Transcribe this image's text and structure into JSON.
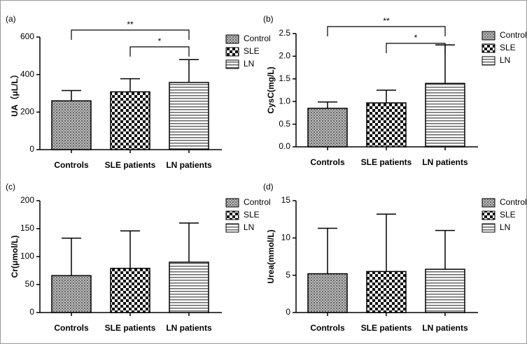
{
  "chart_data": [
    {
      "type": "bar",
      "panel_label": "(a)",
      "ylabel": "UA（μL/L）",
      "categories": [
        "Controls",
        "SLE patients",
        "LN patients"
      ],
      "values": [
        260,
        308,
        358
      ],
      "errors": [
        55,
        70,
        122
      ],
      "legend": [
        "Control",
        "SLE",
        "LN"
      ],
      "patterns": [
        "crosshatch",
        "checker",
        "hlines"
      ],
      "ylim": [
        0,
        600
      ],
      "yticks": [
        0,
        200,
        400,
        600
      ],
      "annotations": [
        {
          "text": "**",
          "from": 0,
          "to": 2
        },
        {
          "text": "*",
          "from": 1,
          "to": 2
        }
      ]
    },
    {
      "type": "bar",
      "panel_label": "(b)",
      "ylabel": "CysC(mg/L)",
      "categories": [
        "Controls",
        "SLE patients",
        "LN patients"
      ],
      "values": [
        0.85,
        0.97,
        1.4
      ],
      "errors": [
        0.14,
        0.28,
        0.85
      ],
      "legend": [
        "Control",
        "SLE",
        "LN"
      ],
      "patterns": [
        "crosshatch",
        "checker",
        "hlines"
      ],
      "ylim": [
        0,
        2.5
      ],
      "yticks": [
        {
          "value": 0,
          "label": "0.0"
        },
        0.5,
        {
          "value": 1,
          "label": "1.0"
        },
        1.5,
        {
          "value": 2,
          "label": "2.0"
        },
        2.5
      ],
      "annotations": [
        {
          "text": "**",
          "from": 0,
          "to": 2
        },
        {
          "text": "*",
          "from": 1,
          "to": 2
        }
      ]
    },
    {
      "type": "bar",
      "panel_label": "(c)",
      "ylabel": "Cr(μmol/L)",
      "categories": [
        "Controls",
        "SLE patients",
        "LN patients"
      ],
      "values": [
        66,
        79,
        90
      ],
      "errors": [
        67,
        67,
        70
      ],
      "legend": [
        "Control",
        "SLE",
        "LN"
      ],
      "patterns": [
        "crosshatch",
        "checker",
        "hlines"
      ],
      "ylim": [
        0,
        200
      ],
      "yticks": [
        0,
        50,
        100,
        150,
        200
      ],
      "annotations": []
    },
    {
      "type": "bar",
      "panel_label": "(d)",
      "ylabel": "Urea(mmol/L)",
      "categories": [
        "Controls",
        "SLE patients",
        "LN patients"
      ],
      "values": [
        5.2,
        5.5,
        5.8
      ],
      "errors": [
        6.1,
        7.7,
        5.2
      ],
      "legend": [
        "Control",
        "SLE",
        "LN"
      ],
      "patterns": [
        "crosshatch",
        "checker",
        "hlines"
      ],
      "ylim": [
        0,
        15
      ],
      "yticks": [
        0,
        5,
        10,
        15
      ],
      "annotations": []
    }
  ]
}
